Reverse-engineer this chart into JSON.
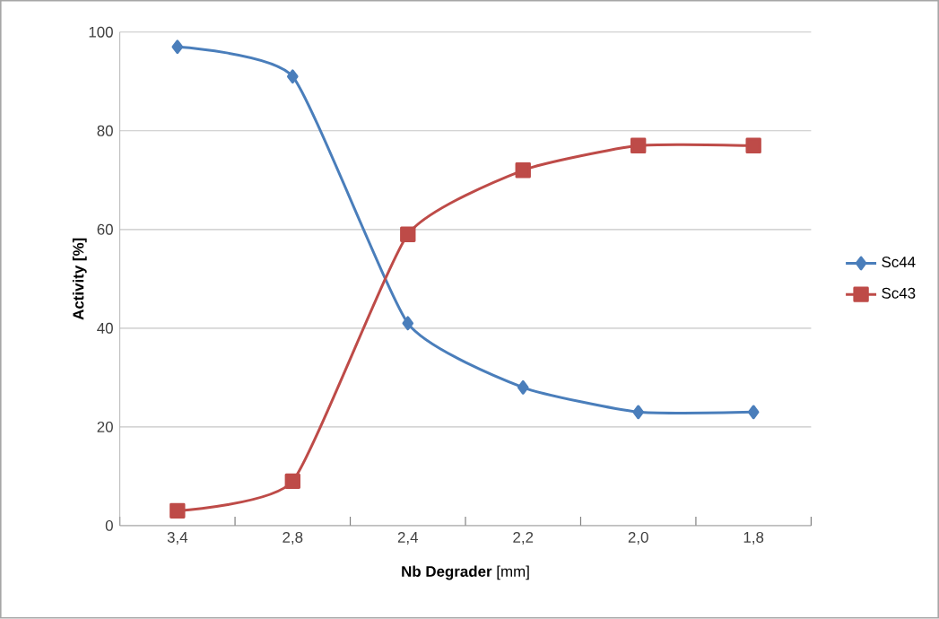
{
  "chart_data": {
    "type": "line",
    "xlabel": "**Nb Degrader** [mm]",
    "ylabel": "Activity [%]",
    "categories": [
      "3,4",
      "2,8",
      "2,4",
      "2,2",
      "2,0",
      "1,8"
    ],
    "series": [
      {
        "name": "Sc44",
        "color": "#4a7ebb",
        "marker": "diamond",
        "values": [
          97,
          91,
          41,
          28,
          23,
          23
        ]
      },
      {
        "name": "Sc43",
        "color": "#be4b48",
        "marker": "square",
        "values": [
          3,
          9,
          59,
          72,
          77,
          77
        ]
      }
    ],
    "ylim": [
      0,
      100
    ],
    "yticks": [
      0,
      20,
      40,
      60,
      80,
      100
    ],
    "grid": "y",
    "legend": "right",
    "line_style": "solid"
  }
}
